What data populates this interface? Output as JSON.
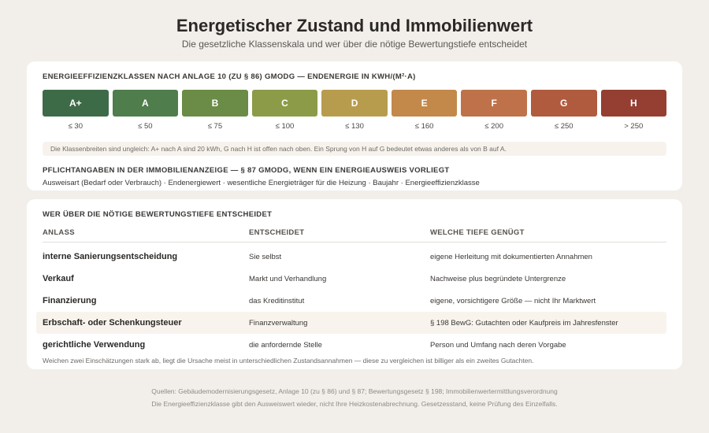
{
  "header": {
    "title": "Energetischer Zustand und Immobilienwert",
    "subtitle": "Die gesetzliche Klassenskala und wer über die nötige Bewertungstiefe entscheidet"
  },
  "scale": {
    "heading": "ENERGIEEFFIZIENZKLASSEN NACH ANLAGE 10 (ZU § 86) GModG — ENDENERGIE IN kWh/(m²·a)",
    "classes": [
      {
        "label": "A+",
        "limit": "≤ 30",
        "color": "#3e6b47"
      },
      {
        "label": "A",
        "limit": "≤ 50",
        "color": "#4f7d4c"
      },
      {
        "label": "B",
        "limit": "≤ 75",
        "color": "#6a8c46"
      },
      {
        "label": "C",
        "limit": "≤ 100",
        "color": "#8c9b48"
      },
      {
        "label": "D",
        "limit": "≤ 130",
        "color": "#b89c4e"
      },
      {
        "label": "E",
        "limit": "≤ 160",
        "color": "#c2894a"
      },
      {
        "label": "F",
        "limit": "≤ 200",
        "color": "#bf7249"
      },
      {
        "label": "G",
        "limit": "≤ 250",
        "color": "#b05a3e"
      },
      {
        "label": "H",
        "limit": "> 250",
        "color": "#943f31"
      }
    ],
    "note": "Die Klassenbreiten sind ungleich: A+ nach A sind 20 kWh, G nach H ist offen nach oben. Ein Sprung von H auf G bedeutet etwas anderes als von B auf A.",
    "duty_heading": "PFLICHTANGABEN IN DER IMMOBILIENANZEIGE — § 87 GModG, WENN EIN ENERGIEAUSWEIS VORLIEGT",
    "duty_text": "Ausweisart (Bedarf oder Verbrauch) · Endenergiewert · wesentliche Energieträger für die Heizung · Baujahr · Energieeffizienzklasse"
  },
  "table": {
    "heading": "WER ÜBER DIE NÖTIGE BEWERTUNGSTIEFE ENTSCHEIDET",
    "columns": [
      "ANLASS",
      "ENTSCHEIDET",
      "WELCHE TIEFE GENÜGT"
    ],
    "rows": [
      [
        "interne Sanierungsentscheidung",
        "Sie selbst",
        "eigene Herleitung mit dokumentierten Annahmen"
      ],
      [
        "Verkauf",
        "Markt und Verhandlung",
        "Nachweise plus begründete Untergrenze"
      ],
      [
        "Finanzierung",
        "das Kreditinstitut",
        "eigene, vorsichtigere Größe — nicht Ihr Marktwert"
      ],
      [
        "Erbschaft- oder Schenkungsteuer",
        "Finanzverwaltung",
        "§ 198 BewG: Gutachten oder Kaufpreis im Jahresfenster"
      ],
      [
        "gerichtliche Verwendung",
        "die anfordernde Stelle",
        "Person und Umfang nach deren Vorgabe"
      ]
    ],
    "highlight_row": 3,
    "footnote": "Weichen zwei Einschätzungen stark ab, liegt die Ursache meist in unterschiedlichen Zustandsannahmen — diese zu vergleichen ist billiger als ein zweites Gutachten."
  },
  "footer": {
    "sources": "Quellen: Gebäudemodernisierungsgesetz, Anlage 10 (zu § 86) und § 87; Bewertungsgesetz § 198; Immobilienwertermittlungsverordnung",
    "disclaimer": "Die Energieeffizienzklasse gibt den Ausweiswert wieder, nicht Ihre Heizkostenabrechnung. Gesetzesstand, keine Prüfung des Einzelfalls."
  }
}
